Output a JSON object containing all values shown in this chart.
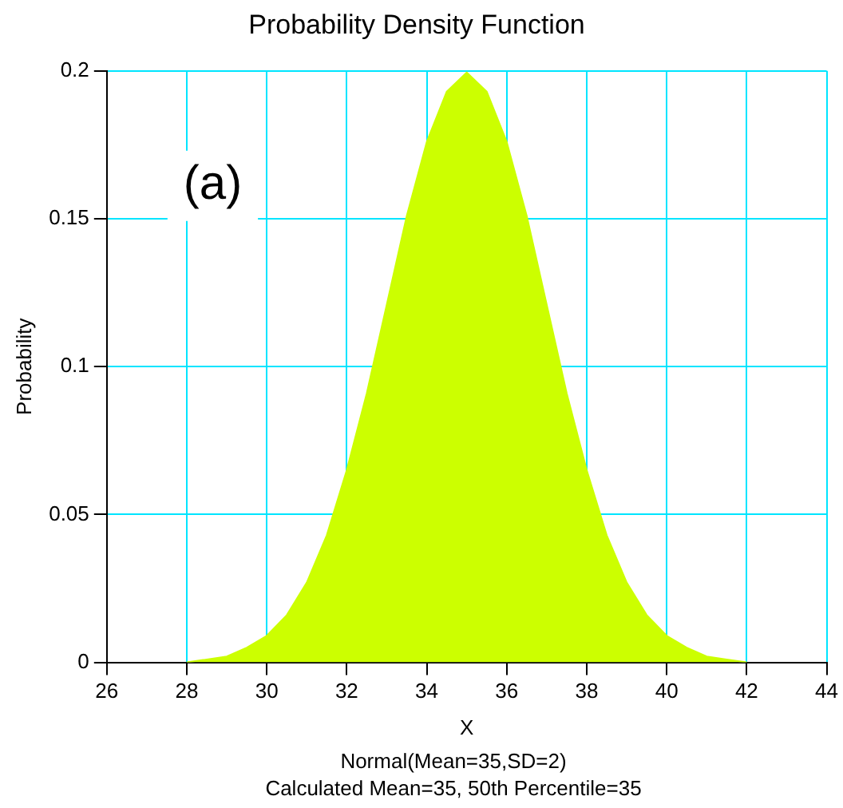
{
  "chart_data": {
    "type": "area",
    "title": "Probability Density Function",
    "xlabel": "X",
    "ylabel": "Probability",
    "x": [
      28,
      28.5,
      29,
      29.5,
      30,
      30.5,
      31,
      31.5,
      32,
      32.5,
      33,
      33.5,
      34,
      34.5,
      35,
      35.5,
      36,
      36.5,
      37,
      37.5,
      38,
      38.5,
      39,
      39.5,
      40,
      40.5,
      41,
      41.5,
      42
    ],
    "series": [
      {
        "color": "#ccff00",
        "values": [
          0,
          0.001,
          0.002,
          0.005,
          0.009,
          0.016,
          0.027,
          0.043,
          0.065,
          0.091,
          0.121,
          0.151,
          0.176,
          0.193,
          0.1995,
          0.193,
          0.176,
          0.151,
          0.121,
          0.091,
          0.065,
          0.043,
          0.027,
          0.016,
          0.009,
          0.005,
          0.002,
          0.001,
          0
        ]
      }
    ],
    "xlim": [
      26,
      44
    ],
    "xticks": [
      26,
      28,
      30,
      32,
      34,
      36,
      38,
      40,
      42,
      44
    ],
    "ylim": [
      0,
      0.2
    ],
    "yticks": [
      0,
      0.05,
      0.1,
      0.15,
      0.2
    ],
    "grid": true,
    "legend": false,
    "marker": "none",
    "annotations": [
      "(a)",
      "Normal(Mean=35,SD=2)",
      "Calculated Mean=35, 50th Percentile=35"
    ]
  }
}
